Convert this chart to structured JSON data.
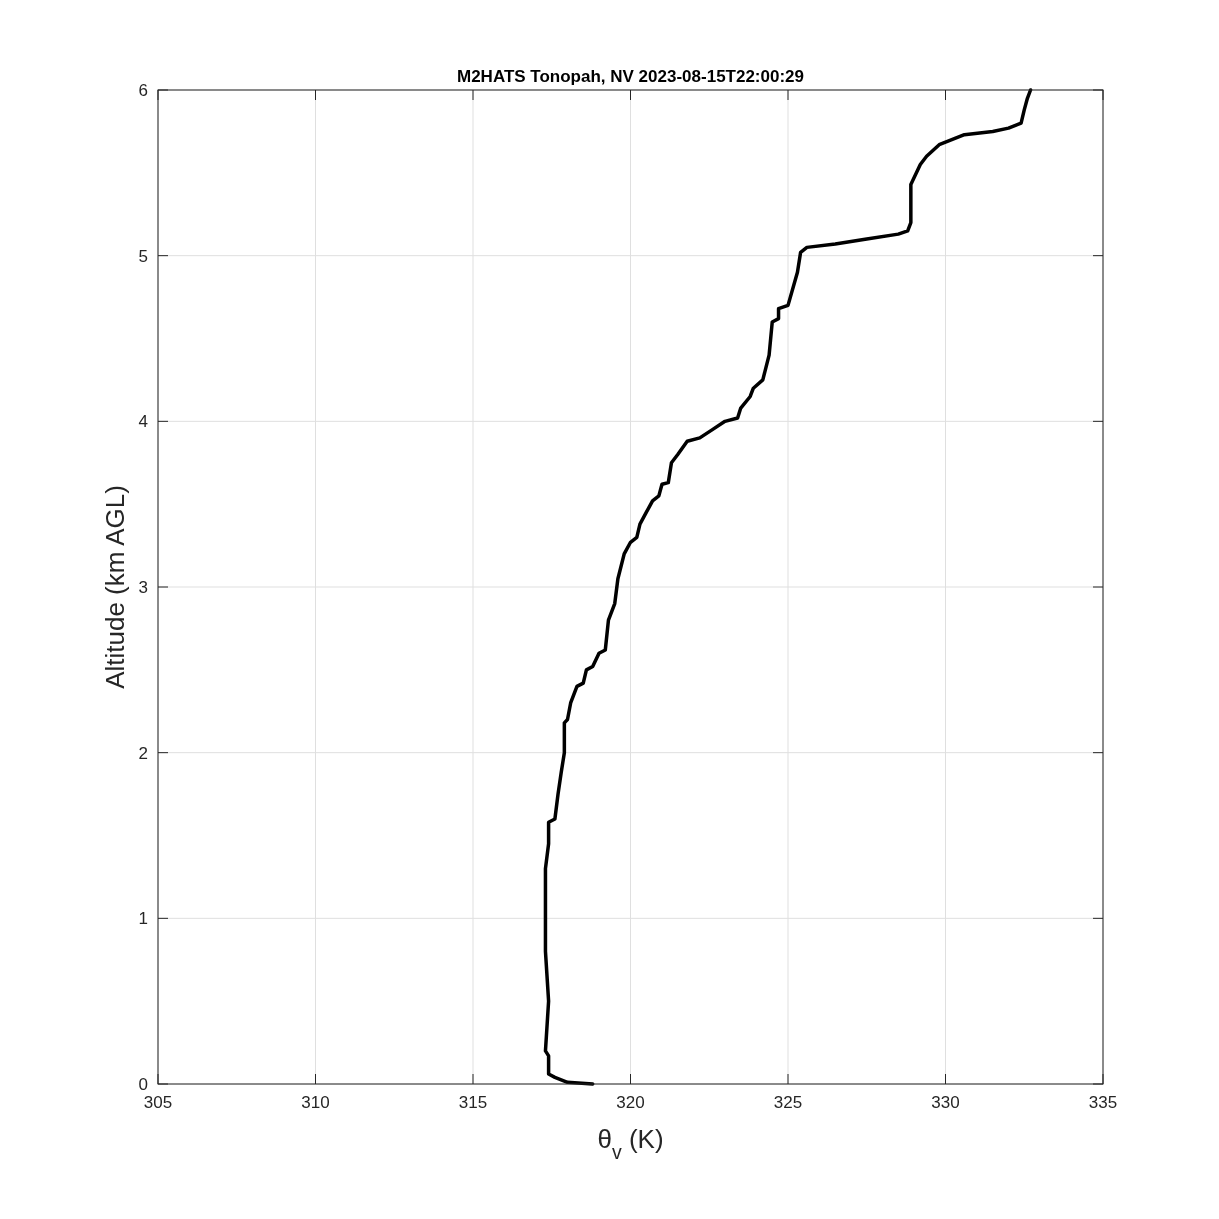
{
  "chart_data": {
    "type": "line",
    "title": "M2HATS Tonopah, NV 2023-08-15T22:00:29",
    "xlabel": "θ$_{v}$ (K)",
    "ylabel": "Altitude (km AGL)",
    "xlim": [
      305,
      335
    ],
    "xticks": [
      305,
      310,
      315,
      320,
      325,
      330,
      335
    ],
    "ylim": [
      0,
      6
    ],
    "yticks": [
      0,
      1,
      2,
      3,
      4,
      5,
      6
    ],
    "grid": true,
    "line_style": "solid",
    "marker": "none",
    "series": [
      {
        "color": "#000000",
        "x": [
          318.8,
          318.0,
          317.6,
          317.4,
          317.4,
          317.3,
          317.4,
          317.3,
          317.3,
          317.3,
          317.4,
          317.4,
          317.6,
          317.7,
          317.8,
          317.9,
          317.9,
          318.0,
          318.1,
          318.3,
          318.5,
          318.6,
          318.8,
          319.0,
          319.2,
          319.3,
          319.5,
          319.6,
          319.8,
          320.0,
          320.2,
          320.3,
          320.5,
          320.7,
          320.9,
          321.0,
          321.2,
          321.3,
          321.5,
          321.8,
          322.2,
          322.6,
          323.0,
          323.4,
          323.5,
          323.8,
          323.9,
          324.2,
          324.4,
          324.5,
          324.7,
          324.7,
          325.0,
          325.3,
          325.4,
          325.6,
          326.5,
          327.5,
          328.5,
          328.8,
          328.9,
          328.9,
          329.2,
          329.4,
          329.8,
          330.2,
          330.6,
          331.5,
          332.0,
          332.4,
          332.5,
          332.6,
          332.7
        ],
        "values": [
          0.0,
          0.01,
          0.04,
          0.06,
          0.17,
          0.2,
          0.5,
          0.8,
          1.0,
          1.3,
          1.45,
          1.58,
          1.6,
          1.75,
          1.88,
          2.0,
          2.18,
          2.2,
          2.3,
          2.4,
          2.42,
          2.5,
          2.52,
          2.6,
          2.62,
          2.8,
          2.9,
          3.05,
          3.2,
          3.27,
          3.3,
          3.38,
          3.45,
          3.52,
          3.55,
          3.62,
          3.63,
          3.75,
          3.8,
          3.88,
          3.9,
          3.95,
          4.0,
          4.02,
          4.08,
          4.15,
          4.2,
          4.25,
          4.4,
          4.6,
          4.62,
          4.68,
          4.7,
          4.9,
          5.02,
          5.05,
          5.07,
          5.1,
          5.13,
          5.15,
          5.2,
          5.43,
          5.55,
          5.6,
          5.67,
          5.7,
          5.73,
          5.75,
          5.77,
          5.8,
          5.88,
          5.95,
          6.0
        ]
      }
    ]
  }
}
